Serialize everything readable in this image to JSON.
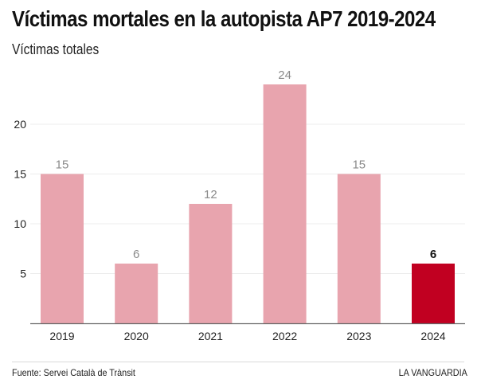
{
  "header": {
    "title": "Víctimas mortales en la autopista AP7 2019-2024",
    "subtitle": "Víctimas totales"
  },
  "footer": {
    "source": "Fuente: Servei Català de Trànsit",
    "brand": "LA VANGUARDIA"
  },
  "colors": {
    "bar_default": "#e8a4ae",
    "bar_highlight": "#c10021",
    "label_default": "#8a8a8a",
    "label_highlight": "#111111",
    "grid": "#ececec",
    "axis": "#666666"
  },
  "chart_data": {
    "type": "bar",
    "title": "Víctimas mortales en la autopista AP7 2019-2024",
    "subtitle": "Víctimas totales",
    "xlabel": "",
    "ylabel": "",
    "categories": [
      "2019",
      "2020",
      "2021",
      "2022",
      "2023",
      "2024"
    ],
    "values": [
      15,
      6,
      12,
      24,
      15,
      6
    ],
    "highlight": [
      "2024"
    ],
    "data_labels": [
      "15",
      "6",
      "12",
      "24",
      "15",
      "6"
    ],
    "yticks": [
      5,
      10,
      15,
      20
    ],
    "ylim": [
      0,
      26
    ],
    "grid": true,
    "legend": "none"
  }
}
